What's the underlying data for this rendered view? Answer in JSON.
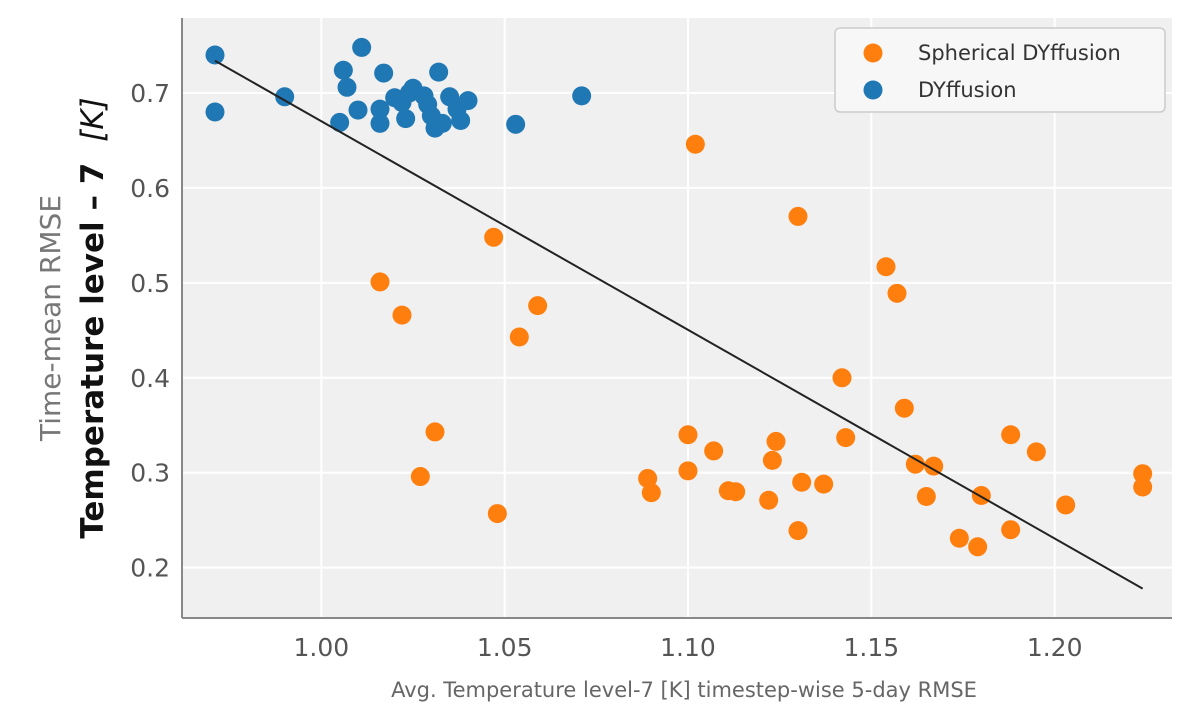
{
  "chart_data": {
    "type": "scatter",
    "xlabel": "Avg. Temperature level-7 [K] timestep-wise 5-day RMSE",
    "ylabel_line1": "Time-mean RMSE",
    "ylabel_line2_bold": "Temperature level – 7",
    "ylabel_line2_unit": "[K]",
    "xlim": [
      0.962,
      1.232
    ],
    "ylim": [
      0.147,
      0.779
    ],
    "xticks": [
      "1.00",
      "1.05",
      "1.10",
      "1.15",
      "1.20"
    ],
    "yticks": [
      "0.2",
      "0.3",
      "0.4",
      "0.5",
      "0.6",
      "0.7"
    ],
    "grid": true,
    "legend_position": "top-right",
    "colors": {
      "background": "#f0f0f0",
      "grid": "#ffffff",
      "axis": "#888888",
      "fit_line": "#222222"
    },
    "series": [
      {
        "name": "Spherical DYffusion",
        "color": "#ff7f0e",
        "points": [
          [
            1.102,
            0.646
          ],
          [
            1.13,
            0.57
          ],
          [
            1.047,
            0.548
          ],
          [
            1.016,
            0.501
          ],
          [
            1.059,
            0.476
          ],
          [
            1.022,
            0.466
          ],
          [
            1.054,
            0.443
          ],
          [
            1.031,
            0.343
          ],
          [
            1.027,
            0.296
          ],
          [
            1.048,
            0.257
          ],
          [
            1.154,
            0.517
          ],
          [
            1.157,
            0.489
          ],
          [
            1.142,
            0.4
          ],
          [
            1.159,
            0.368
          ],
          [
            1.143,
            0.337
          ],
          [
            1.1,
            0.34
          ],
          [
            1.107,
            0.323
          ],
          [
            1.124,
            0.333
          ],
          [
            1.123,
            0.313
          ],
          [
            1.1,
            0.302
          ],
          [
            1.089,
            0.294
          ],
          [
            1.09,
            0.279
          ],
          [
            1.111,
            0.281
          ],
          [
            1.113,
            0.28
          ],
          [
            1.122,
            0.271
          ],
          [
            1.131,
            0.29
          ],
          [
            1.137,
            0.288
          ],
          [
            1.13,
            0.239
          ],
          [
            1.162,
            0.309
          ],
          [
            1.167,
            0.307
          ],
          [
            1.165,
            0.275
          ],
          [
            1.18,
            0.276
          ],
          [
            1.188,
            0.34
          ],
          [
            1.195,
            0.322
          ],
          [
            1.188,
            0.24
          ],
          [
            1.174,
            0.231
          ],
          [
            1.179,
            0.222
          ],
          [
            1.203,
            0.266
          ],
          [
            1.224,
            0.299
          ],
          [
            1.224,
            0.285
          ]
        ]
      },
      {
        "name": "DYffusion",
        "color": "#1f77b4",
        "points": [
          [
            0.971,
            0.74
          ],
          [
            0.971,
            0.68
          ],
          [
            0.99,
            0.696
          ],
          [
            1.011,
            0.748
          ],
          [
            1.006,
            0.724
          ],
          [
            1.007,
            0.706
          ],
          [
            1.01,
            0.682
          ],
          [
            1.005,
            0.669
          ],
          [
            1.017,
            0.721
          ],
          [
            1.016,
            0.683
          ],
          [
            1.016,
            0.668
          ],
          [
            1.02,
            0.695
          ],
          [
            1.022,
            0.69
          ],
          [
            1.024,
            0.7
          ],
          [
            1.025,
            0.705
          ],
          [
            1.023,
            0.673
          ],
          [
            1.028,
            0.697
          ],
          [
            1.029,
            0.688
          ],
          [
            1.03,
            0.676
          ],
          [
            1.032,
            0.722
          ],
          [
            1.031,
            0.663
          ],
          [
            1.033,
            0.668
          ],
          [
            1.035,
            0.696
          ],
          [
            1.037,
            0.683
          ],
          [
            1.038,
            0.671
          ],
          [
            1.04,
            0.692
          ],
          [
            1.053,
            0.667
          ],
          [
            1.071,
            0.697
          ]
        ]
      }
    ],
    "fit_line": {
      "x": [
        0.971,
        1.224
      ],
      "y": [
        0.734,
        0.178
      ]
    }
  }
}
